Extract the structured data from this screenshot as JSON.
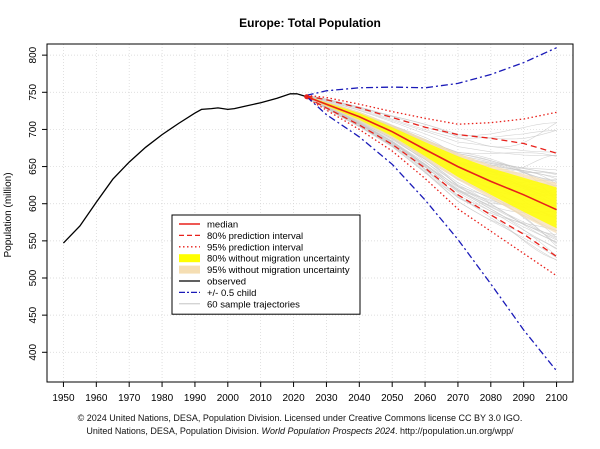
{
  "chart_data": {
    "type": "line",
    "title": "Europe: Total Population",
    "xlabel": "",
    "ylabel": "Population (million)",
    "xlim": [
      1945,
      2105
    ],
    "ylim": [
      360,
      815
    ],
    "x_ticks": [
      1950,
      1960,
      1970,
      1980,
      1990,
      2000,
      2010,
      2020,
      2030,
      2040,
      2050,
      2060,
      2070,
      2080,
      2090,
      2100
    ],
    "y_ticks": [
      400,
      450,
      500,
      550,
      600,
      650,
      700,
      750,
      800
    ],
    "grid": true,
    "legend_position": "center-left",
    "legend": [
      {
        "label": "median",
        "style": "solid-red"
      },
      {
        "label": "80% prediction interval",
        "style": "dashed-red"
      },
      {
        "label": "95% prediction interval",
        "style": "dotted-red"
      },
      {
        "label": "80% without migration uncertainty",
        "style": "band-yellow"
      },
      {
        "label": "95% without migration uncertainty",
        "style": "band-wheat"
      },
      {
        "label": "observed",
        "style": "solid-black"
      },
      {
        "label": "+/- 0.5 child",
        "style": "dashdot-blue"
      },
      {
        "label": "60 sample trajectories",
        "style": "thin-gray"
      }
    ],
    "series": [
      {
        "name": "observed",
        "color": "#000000",
        "points": [
          [
            1950,
            547
          ],
          [
            1955,
            570
          ],
          [
            1960,
            602
          ],
          [
            1965,
            633
          ],
          [
            1970,
            656
          ],
          [
            1975,
            676
          ],
          [
            1980,
            693
          ],
          [
            1985,
            708
          ],
          [
            1990,
            722
          ],
          [
            1992,
            727
          ],
          [
            1995,
            728
          ],
          [
            1997,
            729
          ],
          [
            2000,
            727
          ],
          [
            2002,
            728
          ],
          [
            2005,
            731
          ],
          [
            2010,
            736
          ],
          [
            2015,
            742
          ],
          [
            2019,
            748
          ],
          [
            2021,
            748
          ],
          [
            2024,
            744
          ]
        ]
      },
      {
        "name": "median",
        "color": "#e8211b",
        "points": [
          [
            2024,
            744
          ],
          [
            2030,
            734
          ],
          [
            2040,
            717
          ],
          [
            2050,
            697
          ],
          [
            2060,
            673
          ],
          [
            2070,
            650
          ],
          [
            2080,
            630
          ],
          [
            2090,
            612
          ],
          [
            2100,
            592
          ]
        ]
      },
      {
        "name": "80% prediction interval upper",
        "color": "#e8211b",
        "points": [
          [
            2024,
            745
          ],
          [
            2030,
            740
          ],
          [
            2040,
            729
          ],
          [
            2050,
            716
          ],
          [
            2060,
            703
          ],
          [
            2070,
            693
          ],
          [
            2080,
            688
          ],
          [
            2090,
            681
          ],
          [
            2100,
            668
          ]
        ]
      },
      {
        "name": "80% prediction interval lower",
        "color": "#e8211b",
        "points": [
          [
            2024,
            743
          ],
          [
            2030,
            729
          ],
          [
            2040,
            706
          ],
          [
            2050,
            680
          ],
          [
            2060,
            648
          ],
          [
            2070,
            612
          ],
          [
            2080,
            585
          ],
          [
            2090,
            559
          ],
          [
            2100,
            529
          ]
        ]
      },
      {
        "name": "95% prediction interval upper",
        "color": "#e8211b",
        "points": [
          [
            2024,
            746
          ],
          [
            2030,
            743
          ],
          [
            2040,
            734
          ],
          [
            2050,
            724
          ],
          [
            2060,
            715
          ],
          [
            2070,
            707
          ],
          [
            2080,
            709
          ],
          [
            2090,
            714
          ],
          [
            2100,
            723
          ]
        ]
      },
      {
        "name": "95% prediction interval lower",
        "color": "#e8211b",
        "points": [
          [
            2024,
            742
          ],
          [
            2030,
            726
          ],
          [
            2040,
            700
          ],
          [
            2050,
            671
          ],
          [
            2060,
            634
          ],
          [
            2070,
            593
          ],
          [
            2080,
            563
          ],
          [
            2090,
            533
          ],
          [
            2100,
            503
          ]
        ]
      },
      {
        "name": "+0.5 child",
        "color": "#1a1ab8",
        "points": [
          [
            2024,
            746
          ],
          [
            2030,
            752
          ],
          [
            2040,
            756
          ],
          [
            2050,
            757
          ],
          [
            2060,
            756
          ],
          [
            2070,
            762
          ],
          [
            2080,
            774
          ],
          [
            2090,
            790
          ],
          [
            2100,
            810
          ]
        ]
      },
      {
        "name": "-0.5 child",
        "color": "#1a1ab8",
        "points": [
          [
            2024,
            744
          ],
          [
            2030,
            720
          ],
          [
            2040,
            690
          ],
          [
            2050,
            653
          ],
          [
            2060,
            605
          ],
          [
            2070,
            552
          ],
          [
            2080,
            492
          ],
          [
            2090,
            430
          ],
          [
            2100,
            375
          ]
        ]
      }
    ],
    "bands": [
      {
        "name": "95% without migration uncertainty",
        "color": "#f5deb3",
        "x": [
          2024,
          2030,
          2040,
          2050,
          2060,
          2070,
          2080,
          2090,
          2100
        ],
        "lower": [
          743,
          731,
          711,
          688,
          660,
          632,
          607,
          582,
          560
        ],
        "upper": [
          745,
          737,
          724,
          706,
          687,
          668,
          652,
          640,
          628
        ]
      },
      {
        "name": "80% without migration uncertainty",
        "color": "#ffff00",
        "x": [
          2024,
          2030,
          2040,
          2050,
          2060,
          2070,
          2080,
          2090,
          2100
        ],
        "lower": [
          744,
          732,
          713,
          691,
          664,
          636,
          612,
          589,
          567
        ],
        "upper": [
          745,
          736,
          722,
          703,
          683,
          664,
          648,
          635,
          622
        ]
      }
    ],
    "sample_trajectories_count": 60
  },
  "footer": {
    "line1": "© 2024 United Nations, DESA, Population Division. Licensed under Creative Commons license CC BY 3.0 IGO.",
    "line2_prefix": "United Nations, DESA, Population Division.",
    "line2_title": "World Population Prospects 2024",
    "line2_suffix": ". http://population.un.org/wpp/"
  }
}
